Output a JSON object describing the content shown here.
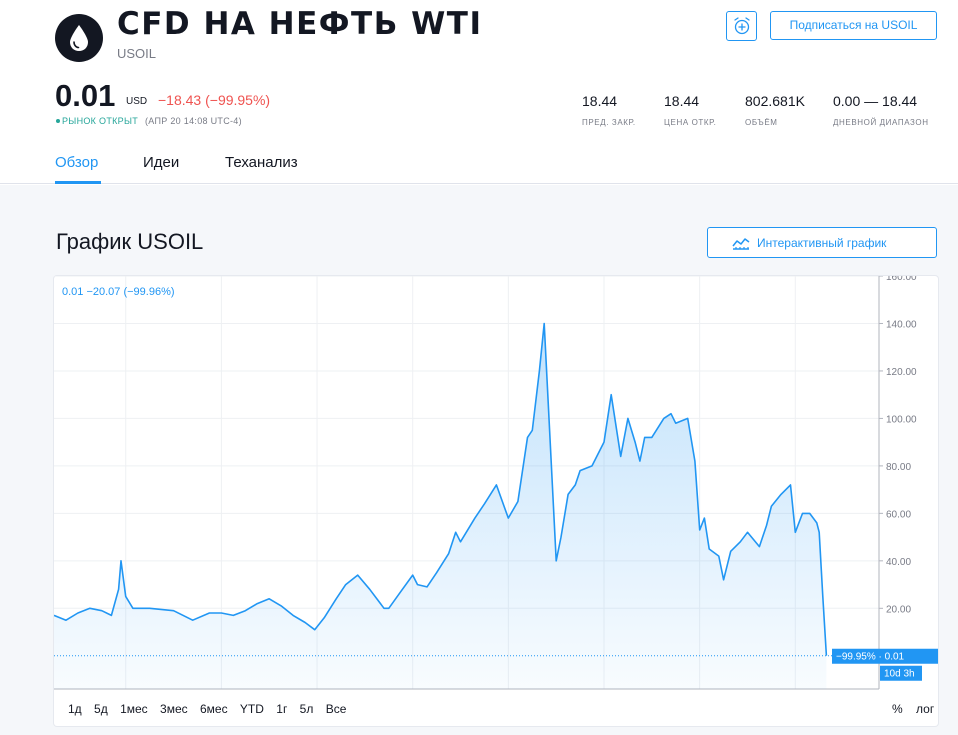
{
  "header": {
    "title": "CFD НА НЕФТЬ WTI",
    "ticker": "USOIL",
    "subscribe_label": "Подписаться на USOIL",
    "logo_icon": "oil-drop-icon",
    "alert_icon": "alarm-clock-plus-icon"
  },
  "quote": {
    "price": "0.01",
    "currency": "USD",
    "change": "−18.43 (−99.95%)",
    "market_status": "РЫНОК ОТКРЫТ",
    "time": "(АПР 20 14:08 UTC-4)"
  },
  "stats": [
    {
      "value": "18.44",
      "label": "ПРЕД. ЗАКР."
    },
    {
      "value": "18.44",
      "label": "ЦЕНА ОТКР."
    },
    {
      "value": "802.681K",
      "label": "ОБЪЁМ"
    },
    {
      "value": "0.00 — 18.44",
      "label": "ДНЕВНОЙ ДИАПАЗОН"
    }
  ],
  "tabs": [
    {
      "label": "Обзор",
      "active": true
    },
    {
      "label": "Идеи",
      "active": false
    },
    {
      "label": "Теханализ",
      "active": false
    }
  ],
  "chart_section": {
    "title": "График USOIL",
    "interactive_label": "Интерактивный график",
    "legend": "0.01 −20.07 (−99.96%)",
    "ranges": [
      "1д",
      "5д",
      "1мес",
      "3мес",
      "6мес",
      "YTD",
      "1г",
      "5л",
      "Все"
    ],
    "scale_options": [
      "%",
      "лог"
    ]
  },
  "colors": {
    "accent": "#2196f3",
    "negative": "#ef5350",
    "positive": "#26a69a"
  },
  "chart_data": {
    "type": "area",
    "x": [
      1988.0,
      1988.5,
      1989.0,
      1989.5,
      1990.0,
      1990.4,
      1990.7,
      1990.8,
      1991.0,
      1991.3,
      1992.0,
      1993.0,
      1993.8,
      1994.5,
      1995.0,
      1995.5,
      1996.0,
      1996.5,
      1997.0,
      1997.5,
      1998.0,
      1998.5,
      1998.9,
      1999.3,
      1999.8,
      2000.2,
      2000.7,
      2001.2,
      2001.8,
      2002.0,
      2002.5,
      2003.0,
      2003.2,
      2003.6,
      2004.0,
      2004.5,
      2004.8,
      2005.0,
      2005.6,
      2006.0,
      2006.5,
      2007.0,
      2007.4,
      2007.8,
      2008.0,
      2008.3,
      2008.5,
      2008.7,
      2009.0,
      2009.2,
      2009.5,
      2009.8,
      2010.0,
      2010.5,
      2011.0,
      2011.3,
      2011.7,
      2012.0,
      2012.3,
      2012.5,
      2012.7,
      2013.0,
      2013.5,
      2013.8,
      2014.0,
      2014.5,
      2014.8,
      2015.0,
      2015.2,
      2015.4,
      2015.8,
      2016.0,
      2016.3,
      2016.7,
      2017.0,
      2017.5,
      2017.8,
      2018.0,
      2018.4,
      2018.8,
      2019.0,
      2019.3,
      2019.6,
      2019.9,
      2020.0,
      2020.15,
      2020.3
    ],
    "values": [
      17,
      15,
      18,
      20,
      19,
      17,
      28,
      40,
      25,
      20,
      20,
      19,
      15,
      18,
      18,
      17,
      19,
      22,
      24,
      21,
      17,
      14,
      11,
      16,
      24,
      30,
      34,
      28,
      20,
      20,
      27,
      34,
      30,
      29,
      35,
      43,
      52,
      48,
      58,
      64,
      72,
      58,
      65,
      92,
      95,
      120,
      140,
      100,
      40,
      50,
      68,
      72,
      78,
      80,
      90,
      110,
      84,
      100,
      90,
      82,
      92,
      92,
      100,
      102,
      98,
      100,
      82,
      53,
      58,
      45,
      42,
      32,
      44,
      48,
      52,
      46,
      55,
      63,
      68,
      72,
      52,
      60,
      60,
      56,
      52,
      25,
      0.01
    ],
    "ylim": [
      -14,
      160
    ],
    "xlim": [
      1988,
      2022.5
    ],
    "y_ticks": [
      "160.00",
      "140.00",
      "120.00",
      "100.00",
      "80.00",
      "60.00",
      "40.00",
      "20.00"
    ],
    "x_ticks": [
      "1991",
      "1995",
      "1999",
      "2003",
      "2007",
      "2011",
      "2015",
      "2019"
    ],
    "last_label": "−99.95% · 0.01",
    "countdown_label": "10d 3h",
    "grid": true
  }
}
